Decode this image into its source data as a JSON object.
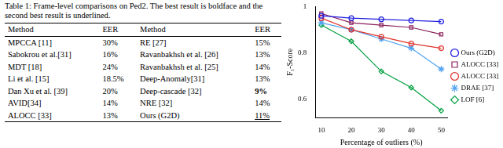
{
  "table": {
    "caption": "Table 1: Frame-level comparisons on Ped2. The best result is boldface and the second best result is underlined.",
    "header": [
      "Method",
      "EER",
      "Method",
      "EER"
    ],
    "rows": [
      [
        "MPCCA [11]",
        "30%",
        "RE [27]",
        "15%"
      ],
      [
        "Sabokrou et al.[31]",
        "16%",
        "Ravanbakhsh et al. [26]",
        "13%"
      ],
      [
        "MDT [18]",
        "24%",
        "Ravanbakhsh et al. [25]",
        "14%"
      ],
      [
        "Li et al. [15]",
        "18.5%",
        "Deep-Anomaly[31]",
        "13%"
      ],
      [
        "Dan Xu et al. [39]",
        "20%",
        "Deep-cascade [32]",
        {
          "text": "9%",
          "style": "bold"
        }
      ],
      [
        "AVID[34]",
        "14%",
        "NRE [32]",
        "14%"
      ],
      [
        "ALOCC [33]",
        "13%",
        "Ours (G2D)",
        {
          "text": "11%",
          "style": "underline"
        }
      ]
    ]
  },
  "chart_data": {
    "type": "line",
    "x_label": "Percentage of outliers (%)",
    "y_label": "F₁-Score",
    "x": [
      10,
      20,
      30,
      40,
      50
    ],
    "xlim": [
      8,
      52
    ],
    "xticks": [
      10,
      20,
      30,
      40,
      50
    ],
    "ylim": [
      0.52,
      1
    ],
    "yticks": [
      0.6,
      0.8,
      1
    ],
    "grid": false,
    "legend": "right",
    "series": [
      {
        "name": "Ours (G2D)",
        "color": "#1f1fe0",
        "marker": "circle",
        "values": [
          0.96,
          0.95,
          0.945,
          0.94,
          0.935
        ]
      },
      {
        "name": "ALOCC [33]",
        "color": "#8a1f5a",
        "marker": "square",
        "values": [
          0.97,
          0.93,
          0.92,
          0.91,
          0.88
        ]
      },
      {
        "name": "ALOCC [33]",
        "color": "#e0342e",
        "marker": "circle",
        "values": [
          0.95,
          0.9,
          0.87,
          0.84,
          0.82
        ]
      },
      {
        "name": "DRAE [37]",
        "color": "#4fa3f0",
        "marker": "star",
        "values": [
          0.93,
          0.9,
          0.86,
          0.82,
          0.73
        ]
      },
      {
        "name": "LOF [6]",
        "color": "#00a040",
        "marker": "diamond",
        "values": [
          0.92,
          0.85,
          0.72,
          0.65,
          0.55
        ]
      }
    ]
  }
}
